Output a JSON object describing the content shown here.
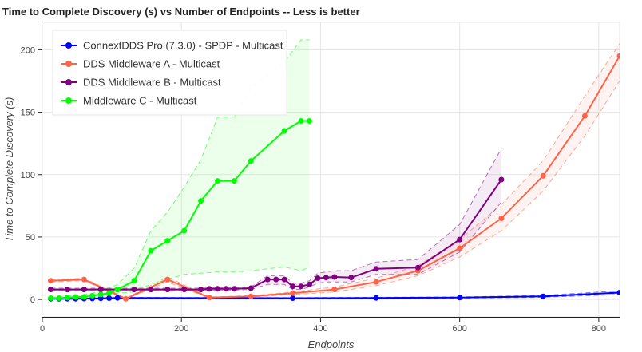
{
  "chart_data": {
    "type": "line",
    "title": "Time to Complete Discovery (s) vs Number of Endpoints  -- Less is better",
    "xlabel": "Endpoints",
    "ylabel": "Time to Complete Discovery (s)",
    "xlim": [
      0,
      830
    ],
    "ylim": [
      -14,
      222
    ],
    "xticks": [
      0,
      200,
      400,
      600,
      800
    ],
    "yticks": [
      0,
      50,
      100,
      150,
      200
    ],
    "grid": true,
    "legend_position": "top-left",
    "series": [
      {
        "name": "ConnextDDS Pro (7.3.0) - SPDP - Multicast",
        "color": "#0000ff",
        "x": [
          12,
          24,
          36,
          48,
          60,
          72,
          84,
          96,
          108,
          360,
          480,
          600,
          720,
          830
        ],
        "y": [
          0.5,
          0.5,
          0.6,
          0.6,
          0.7,
          0.8,
          0.9,
          1.0,
          1.2,
          1.0,
          1.2,
          1.5,
          2.5,
          5.5
        ],
        "band_low": [
          0.2,
          0.2,
          0.3,
          0.3,
          0.4,
          0.5,
          0.6,
          0.7,
          0.8,
          0.6,
          0.8,
          1.0,
          1.8,
          4.0
        ],
        "band_high": [
          0.9,
          0.9,
          1.0,
          1.0,
          1.1,
          1.2,
          1.3,
          1.4,
          1.6,
          1.4,
          1.7,
          2.0,
          3.2,
          7.0
        ]
      },
      {
        "name": "DDS Middleware A - Multicast",
        "color": "#ff6347",
        "x": [
          12,
          60,
          120,
          180,
          240,
          300,
          360,
          420,
          480,
          540,
          600,
          660,
          720,
          780,
          830
        ],
        "y": [
          15,
          16,
          0.5,
          16,
          1.5,
          2.5,
          5,
          8,
          14,
          23,
          41,
          65,
          99,
          147,
          195
        ],
        "band_low": [
          14,
          15,
          0.2,
          14,
          1,
          2,
          4,
          6,
          11,
          19,
          34,
          55,
          87,
          131,
          175
        ],
        "band_high": [
          16,
          17,
          1,
          18,
          2,
          3,
          6,
          10,
          17,
          27,
          48,
          76,
          111,
          163,
          205
        ]
      },
      {
        "name": "DDS Middleware B - Multicast",
        "color": "#800080",
        "x": [
          12,
          36,
          60,
          84,
          108,
          132,
          156,
          180,
          204,
          228,
          240,
          252,
          264,
          276,
          300,
          324,
          336,
          348,
          360,
          372,
          384,
          396,
          408,
          420,
          444,
          480,
          540,
          600,
          660
        ],
        "y": [
          8,
          8,
          8,
          8,
          8,
          8,
          8,
          8,
          8,
          8,
          8.5,
          8.5,
          8.5,
          8.5,
          9,
          16,
          16,
          16,
          10.5,
          10.5,
          12,
          17,
          17.5,
          18,
          17.5,
          24.5,
          25.5,
          48,
          96
        ],
        "band_low": [
          7,
          7,
          7,
          7,
          7,
          7,
          7,
          7,
          7,
          7,
          7.5,
          7.5,
          7.5,
          7.5,
          8,
          12,
          12,
          12,
          8,
          8,
          10,
          13,
          14,
          14,
          14,
          20,
          20,
          38,
          78
        ],
        "band_high": [
          9,
          9,
          9,
          9,
          9,
          9,
          9,
          9,
          9,
          9,
          9.5,
          9.5,
          9.5,
          9.5,
          10,
          19,
          19,
          19,
          13,
          13,
          15,
          21,
          22,
          23,
          23,
          30,
          32,
          60,
          121
        ]
      },
      {
        "name": "Middleware C - Multicast",
        "color": "#00ff00",
        "x": [
          12,
          24,
          36,
          48,
          60,
          72,
          84,
          96,
          108,
          132,
          156,
          180,
          204,
          228,
          252,
          276,
          300,
          348,
          372,
          384
        ],
        "y": [
          1,
          1,
          1.5,
          2,
          2,
          3,
          4,
          5,
          8,
          15,
          39,
          47,
          55,
          79,
          95,
          95,
          111,
          135,
          143,
          143
        ],
        "band_low": [
          0.5,
          0.5,
          0.5,
          1,
          1,
          1.5,
          2,
          3,
          5,
          6,
          12,
          16,
          20,
          21,
          22,
          22,
          23,
          26,
          23,
          26
        ],
        "band_high": [
          2,
          2,
          3,
          3,
          4,
          5,
          7,
          9,
          12,
          25,
          55,
          70,
          90,
          112,
          146,
          146,
          170,
          190,
          208,
          208
        ]
      }
    ]
  }
}
